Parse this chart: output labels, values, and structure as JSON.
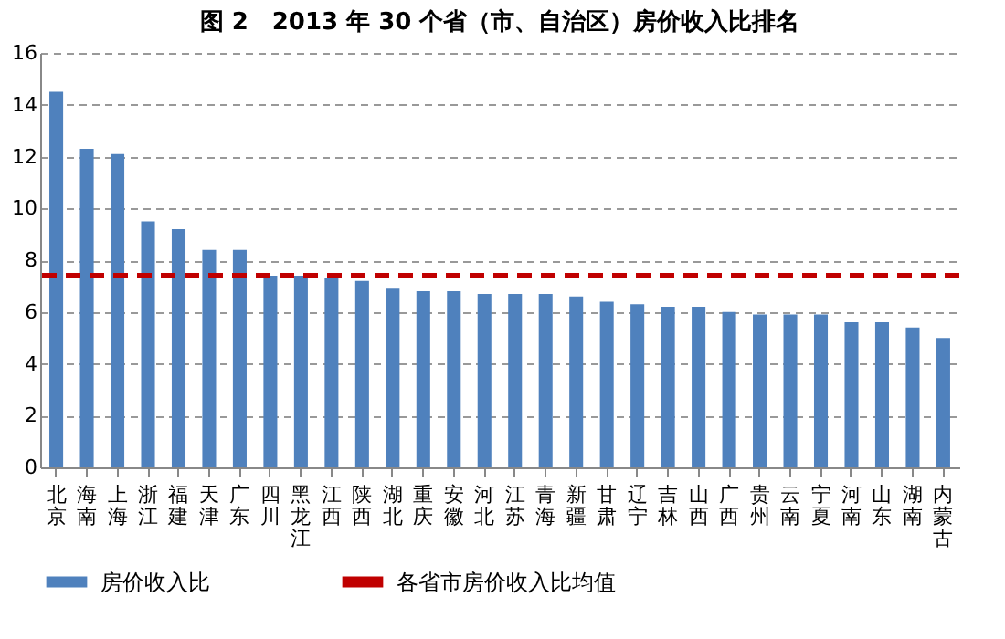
{
  "chart_data": {
    "type": "bar",
    "title": "图 2　2013 年 30 个省（市、自治区）房价收入比排名",
    "categories": [
      "北京",
      "海南",
      "上海",
      "浙江",
      "福建",
      "天津",
      "广东",
      "四川",
      "黑龙江",
      "江西",
      "陕西",
      "湖北",
      "重庆",
      "安徽",
      "河北",
      "江苏",
      "青海",
      "新疆",
      "甘肃",
      "辽宁",
      "吉林",
      "山西",
      "广西",
      "贵州",
      "云南",
      "宁夏",
      "河南",
      "山东",
      "湖南",
      "内蒙古"
    ],
    "series": [
      {
        "name": "房价收入比",
        "color": "#4f81bd",
        "values": [
          14.5,
          12.3,
          12.1,
          9.5,
          9.2,
          8.4,
          8.4,
          7.4,
          7.4,
          7.3,
          7.2,
          6.9,
          6.8,
          6.8,
          6.7,
          6.7,
          6.7,
          6.6,
          6.4,
          6.3,
          6.2,
          6.2,
          6.0,
          5.9,
          5.9,
          5.9,
          5.6,
          5.6,
          5.4,
          5.0
        ]
      }
    ],
    "ylim": [
      0,
      16
    ],
    "yticks": [
      0,
      2,
      4,
      6,
      8,
      10,
      12,
      14,
      16
    ],
    "grid": "y",
    "legend": "bottom",
    "ref_lines": [
      {
        "axis": "y",
        "value": 7.4,
        "label": "各省市房价收入比均值",
        "color": "#c00000",
        "line_style": "dashed"
      }
    ]
  }
}
